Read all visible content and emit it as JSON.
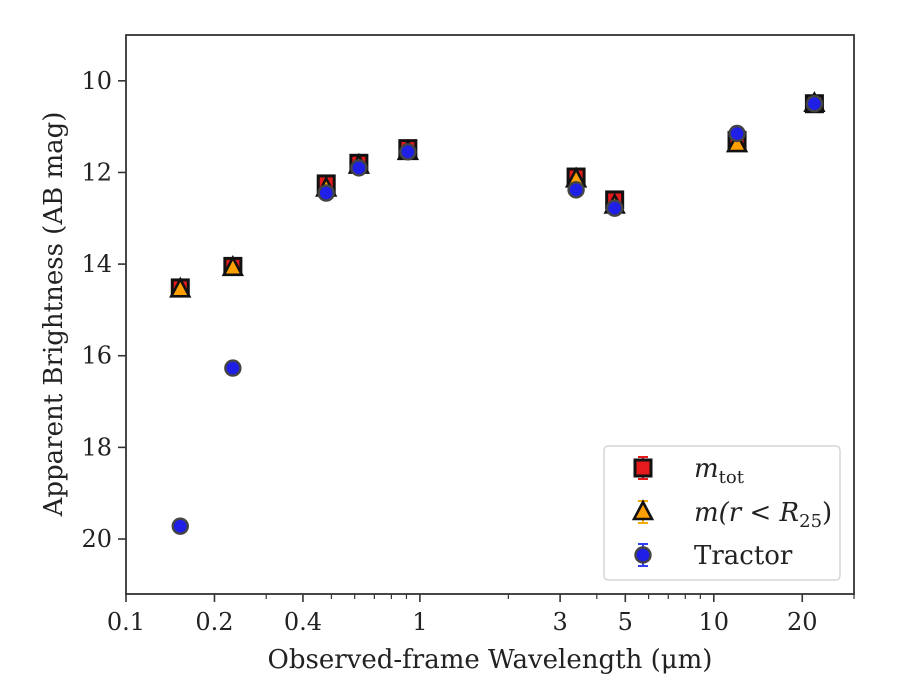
{
  "chart_data": {
    "type": "scatter",
    "xlabel": "Observed-frame Wavelength (μm)",
    "ylabel": "Apparent Brightness (AB mag)",
    "x_scale": "log",
    "xlim": [
      0.1,
      30
    ],
    "ylim": [
      21.2,
      9.0
    ],
    "y_inverted": true,
    "grid": false,
    "legend_position": "lower-right",
    "x_major_ticks": [
      {
        "value": 0.1,
        "label": "0.1"
      },
      {
        "value": 0.2,
        "label": "0.2"
      },
      {
        "value": 0.4,
        "label": "0.4"
      },
      {
        "value": 1,
        "label": "1"
      },
      {
        "value": 3,
        "label": "3"
      },
      {
        "value": 5,
        "label": "5"
      },
      {
        "value": 10,
        "label": "10"
      },
      {
        "value": 20,
        "label": "20"
      }
    ],
    "x_minor_ticks": [
      0.3,
      0.5,
      0.6,
      0.7,
      0.8,
      0.9,
      2,
      4,
      6,
      7,
      8,
      9,
      30
    ],
    "y_ticks": [
      {
        "value": 10,
        "label": "10"
      },
      {
        "value": 12,
        "label": "12"
      },
      {
        "value": 14,
        "label": "14"
      },
      {
        "value": 16,
        "label": "16"
      },
      {
        "value": 18,
        "label": "18"
      },
      {
        "value": 20,
        "label": "20"
      }
    ],
    "series": [
      {
        "name": "m_tot",
        "legend_main": "m",
        "legend_sub": "tot",
        "legend_tail": "",
        "marker": "square",
        "color": "#e41a1c",
        "edgecolor": "#111111",
        "errorcolor": "#e41a1c",
        "points": [
          {
            "x": 0.153,
            "y": 14.52
          },
          {
            "x": 0.231,
            "y": 14.05
          },
          {
            "x": 0.48,
            "y": 12.25
          },
          {
            "x": 0.62,
            "y": 11.8
          },
          {
            "x": 0.91,
            "y": 11.48
          },
          {
            "x": 3.4,
            "y": 12.1
          },
          {
            "x": 4.6,
            "y": 12.6
          },
          {
            "x": 12.0,
            "y": 11.3
          },
          {
            "x": 22.0,
            "y": 10.5
          }
        ]
      },
      {
        "name": "m(r < R_25)",
        "legend_main": "m(r < R",
        "legend_sub": "25",
        "legend_tail": ")",
        "marker": "triangle",
        "color": "#ff9f00",
        "edgecolor": "#111111",
        "errorcolor": "#f2a900",
        "points": [
          {
            "x": 0.153,
            "y": 14.55
          },
          {
            "x": 0.231,
            "y": 14.08
          },
          {
            "x": 0.48,
            "y": 12.35
          },
          {
            "x": 0.62,
            "y": 11.85
          },
          {
            "x": 0.91,
            "y": 11.55
          },
          {
            "x": 3.4,
            "y": 12.15
          },
          {
            "x": 4.6,
            "y": 12.72
          },
          {
            "x": 12.0,
            "y": 11.38
          },
          {
            "x": 22.0,
            "y": 10.5
          }
        ]
      },
      {
        "name": "Tractor",
        "legend_main": "Tractor",
        "legend_sub": "",
        "legend_tail": "",
        "marker": "circle",
        "color": "#1f1fe6",
        "edgecolor": "#444444",
        "errorcolor": "#2e3ef0",
        "points": [
          {
            "x": 0.153,
            "y": 19.72
          },
          {
            "x": 0.231,
            "y": 16.27
          },
          {
            "x": 0.48,
            "y": 12.45
          },
          {
            "x": 0.62,
            "y": 11.9
          },
          {
            "x": 0.91,
            "y": 11.55
          },
          {
            "x": 3.4,
            "y": 12.38
          },
          {
            "x": 4.6,
            "y": 12.78
          },
          {
            "x": 12.0,
            "y": 11.15
          },
          {
            "x": 22.0,
            "y": 10.5
          }
        ]
      }
    ]
  }
}
